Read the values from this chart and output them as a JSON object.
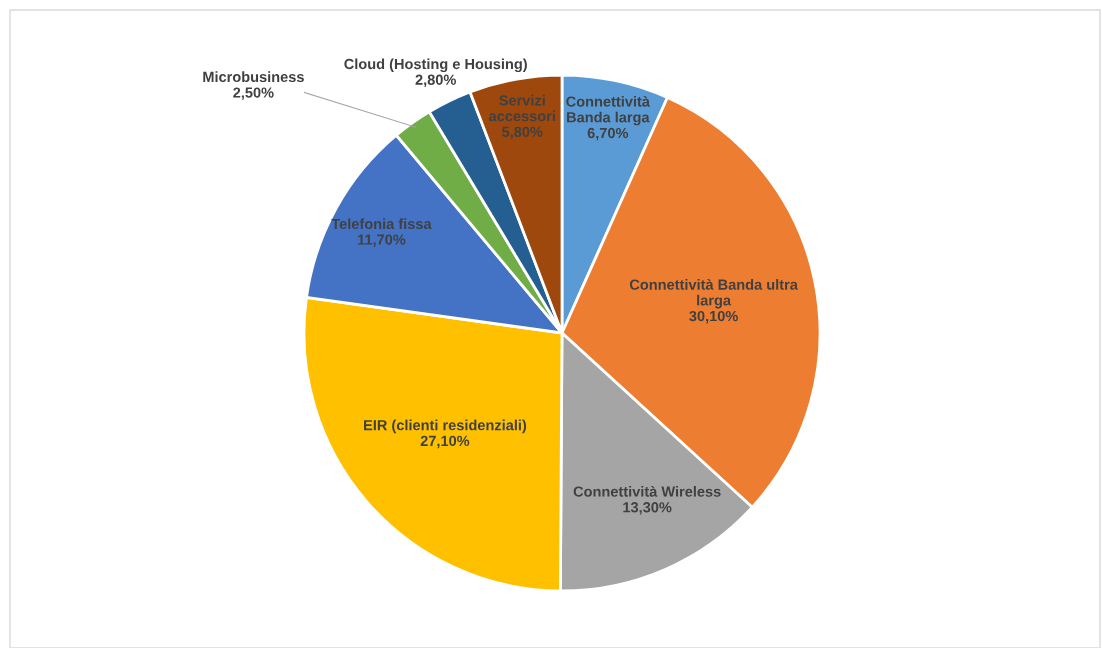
{
  "chart_data": {
    "type": "pie",
    "categories": [
      "Connettività\nBanda larga",
      "Connettività Banda ultra\nlarga",
      "Connettività Wireless",
      "EIR (clienti residenziali)",
      "Telefonia fissa",
      "Microbusiness",
      "Cloud (Hosting e Housing)",
      "Servizi\naccessori"
    ],
    "values": [
      6.7,
      30.1,
      13.3,
      27.1,
      11.7,
      2.5,
      2.8,
      5.8
    ],
    "value_labels": [
      "6,70%",
      "30,10%",
      "13,30%",
      "27,10%",
      "11,70%",
      "2,50%",
      "2,80%",
      "5,80%"
    ],
    "colors": [
      "#5b9bd5",
      "#ed7d31",
      "#a5a5a5",
      "#ffc000",
      "#4472c4",
      "#70ad47",
      "#255e91",
      "#9e480e"
    ]
  }
}
